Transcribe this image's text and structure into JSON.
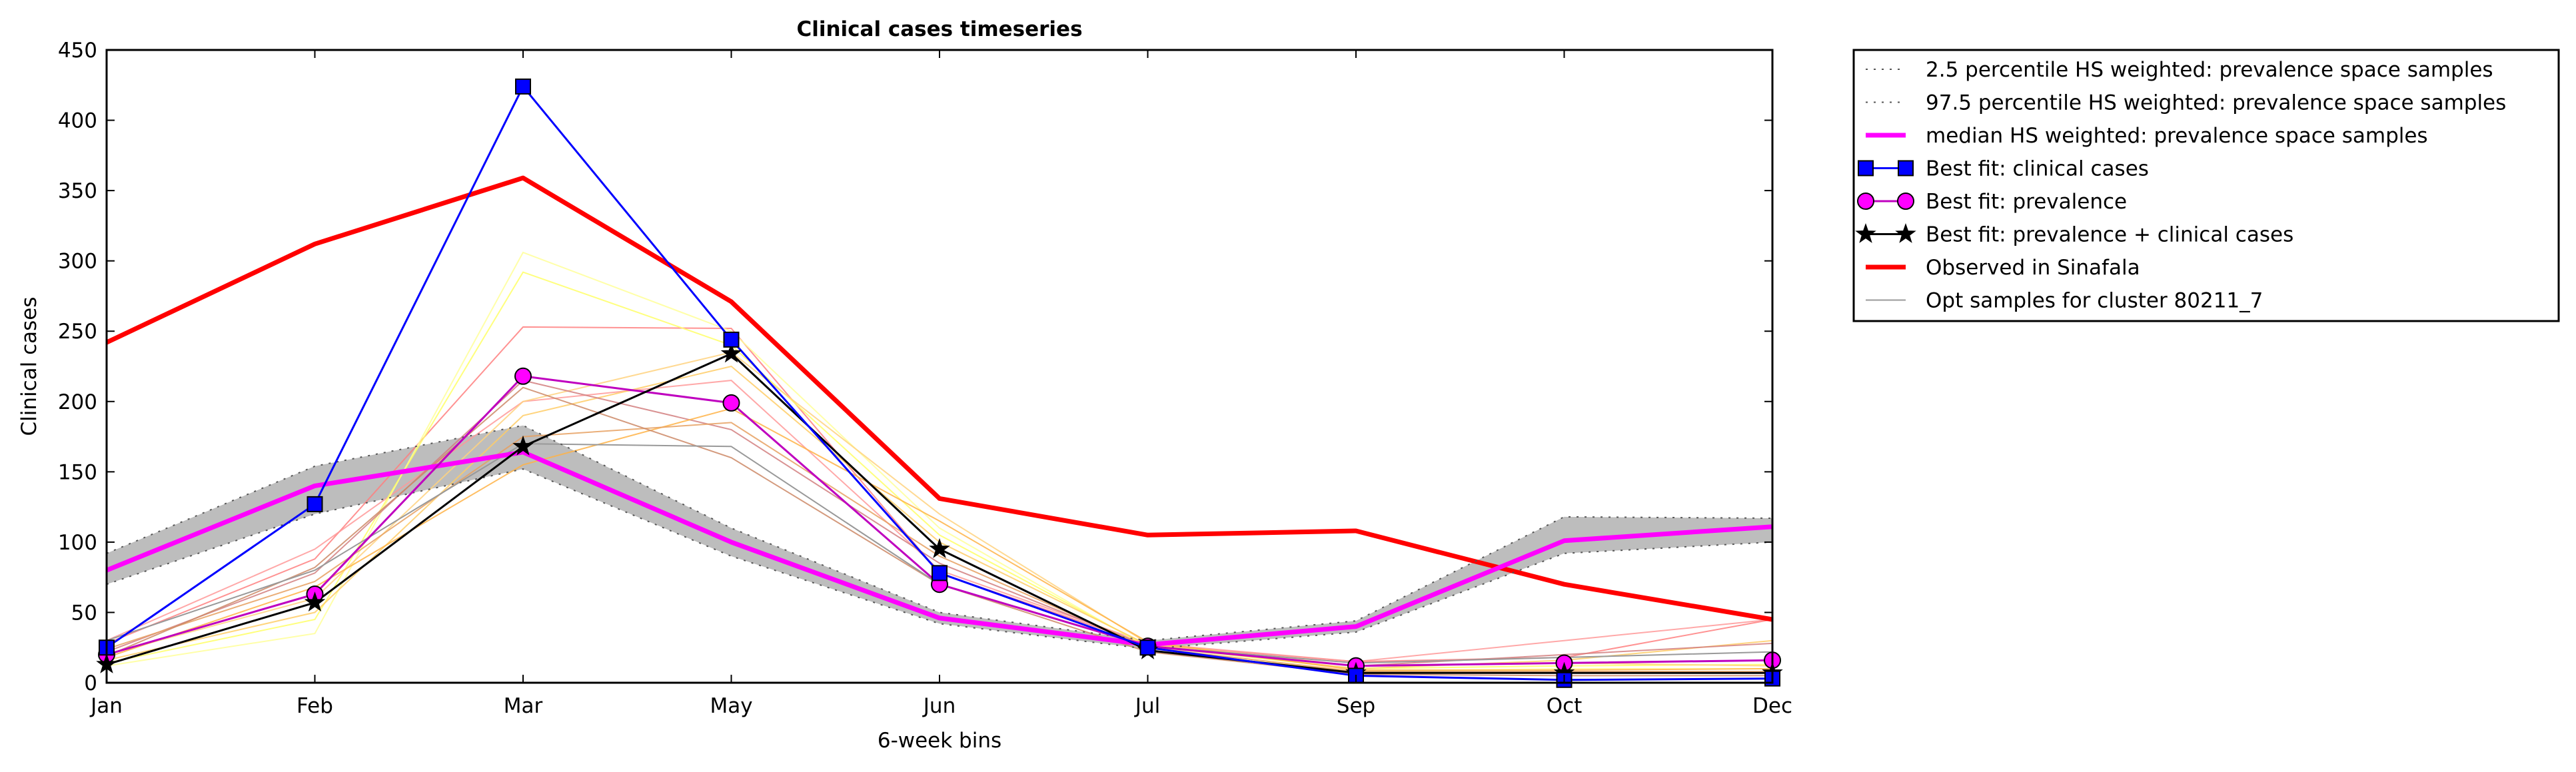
{
  "chart_data": {
    "type": "line",
    "title": "Clinical cases timeseries",
    "xlabel": "6-week bins",
    "ylabel": "Clinical cases",
    "categories": [
      "Jan",
      "Feb",
      "Mar",
      "May",
      "Jun",
      "Jul",
      "Sep",
      "Oct",
      "Dec"
    ],
    "y_ticks": [
      0,
      50,
      100,
      150,
      200,
      250,
      300,
      350,
      400,
      450
    ],
    "ylim": [
      0,
      450
    ],
    "grid": false,
    "legend_position": "outside-right",
    "band": {
      "lower": [
        70,
        120,
        152,
        90,
        42,
        24,
        36,
        92,
        100
      ],
      "upper": [
        92,
        154,
        183,
        110,
        50,
        30,
        44,
        118,
        117
      ],
      "color": "#bdbdbd"
    },
    "series": [
      {
        "name": "2.5 percentile HS weighted: prevalence space samples",
        "values": [
          70,
          120,
          152,
          90,
          42,
          24,
          36,
          92,
          100
        ],
        "color": "#555555",
        "style": "dotted",
        "width": 2
      },
      {
        "name": "97.5 percentile HS weighted: prevalence space samples",
        "values": [
          92,
          154,
          183,
          110,
          50,
          30,
          44,
          118,
          117
        ],
        "color": "#555555",
        "style": "dotted",
        "width": 2
      },
      {
        "name": "median HS weighted: prevalence space samples",
        "values": [
          80,
          140,
          164,
          100,
          46,
          27,
          40,
          101,
          111
        ],
        "color": "#ff00ff",
        "style": "solid",
        "width": 7
      },
      {
        "name": "Best fit: clinical cases",
        "values": [
          25,
          127,
          424,
          244,
          78,
          25,
          5,
          2,
          3
        ],
        "color": "#0000ff",
        "style": "solid",
        "width": 3,
        "marker": "square"
      },
      {
        "name": "Best fit: prevalence",
        "values": [
          20,
          63,
          218,
          199,
          70,
          26,
          12,
          14,
          16
        ],
        "color": "#bf00bf",
        "style": "solid",
        "width": 3,
        "marker": "circle"
      },
      {
        "name": "Best fit: prevalence + clinical cases",
        "values": [
          13,
          57,
          168,
          234,
          95,
          23,
          7,
          7,
          7
        ],
        "color": "#000000",
        "style": "solid",
        "width": 3,
        "marker": "star"
      },
      {
        "name": "Observed in Sinafala",
        "values": [
          242,
          312,
          359,
          271,
          131,
          105,
          108,
          70,
          45
        ],
        "color": "#ff0000",
        "style": "solid",
        "width": 7
      },
      {
        "name": "Opt samples for cluster 80211_7",
        "values": [
          30,
          80,
          170,
          168,
          70,
          26,
          14,
          18,
          22
        ],
        "color": "#999999",
        "style": "solid",
        "width": 2
      }
    ],
    "background_samples": [
      {
        "values": [
          28,
          88,
          253,
          252,
          78,
          27,
          15,
          18,
          45
        ],
        "color": "#ff7f7f"
      },
      {
        "values": [
          30,
          95,
          200,
          215,
          80,
          28,
          15,
          30,
          45
        ],
        "color": "#ff9999"
      },
      {
        "values": [
          12,
          35,
          306,
          250,
          110,
          25,
          8,
          10,
          10
        ],
        "color": "#ffff99"
      },
      {
        "values": [
          14,
          45,
          292,
          240,
          105,
          26,
          10,
          12,
          13
        ],
        "color": "#ffff66"
      },
      {
        "values": [
          20,
          60,
          200,
          235,
          120,
          28,
          12,
          14,
          12
        ],
        "color": "#ffd27f"
      },
      {
        "values": [
          16,
          50,
          190,
          225,
          100,
          27,
          10,
          16,
          30
        ],
        "color": "#ffcc66"
      },
      {
        "values": [
          22,
          78,
          215,
          180,
          85,
          26,
          12,
          20,
          28
        ],
        "color": "#d27f7f"
      },
      {
        "values": [
          18,
          68,
          155,
          195,
          115,
          29,
          9,
          9,
          10
        ],
        "color": "#ffb347"
      },
      {
        "values": [
          24,
          72,
          175,
          185,
          90,
          25,
          8,
          8,
          8
        ],
        "color": "#e6a060"
      },
      {
        "values": [
          19,
          82,
          210,
          160,
          70,
          22,
          6,
          5,
          5
        ],
        "color": "#cc8866"
      }
    ],
    "legend": [
      {
        "label": "2.5 percentile HS weighted: prevalence space samples",
        "color": "#555555",
        "style": "dotted"
      },
      {
        "label": "97.5 percentile HS weighted: prevalence space samples",
        "color": "#555555",
        "style": "dotted"
      },
      {
        "label": "median HS weighted: prevalence space samples",
        "color": "#ff00ff",
        "style": "solid-thick"
      },
      {
        "label": "Best fit: clinical cases",
        "color": "#0000ff",
        "style": "solid",
        "marker": "square"
      },
      {
        "label": "Best fit: prevalence",
        "color": "#bf00bf",
        "style": "solid",
        "marker": "circle"
      },
      {
        "label": "Best fit: prevalence + clinical cases",
        "color": "#000000",
        "style": "solid",
        "marker": "star"
      },
      {
        "label": "Observed in Sinafala",
        "color": "#ff0000",
        "style": "solid-thick"
      },
      {
        "label": "Opt samples for cluster 80211_7",
        "color": "#999999",
        "style": "solid-thin"
      }
    ]
  }
}
